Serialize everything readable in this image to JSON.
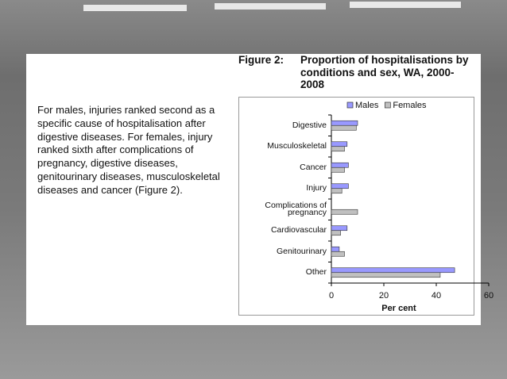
{
  "text": "For males, injuries ranked second as a specific cause of hospitalisation after digestive diseases. For females, injury ranked sixth after complications of pregnancy, digestive diseases, genitourinary diseases, musculoskeletal diseases and cancer (Figure 2).",
  "chart_data": {
    "type": "hbar",
    "figure_label": "Figure 2:",
    "title": "Proportion of hospitalisations by conditions and sex, WA, 2000-2008",
    "x_label": "Per cent",
    "categories": [
      "Digestive",
      "Musculoskeletal",
      "Cancer",
      "Injury",
      "Complications of pregnancy",
      "Cardiovascular",
      "Genitourinary",
      "Other"
    ],
    "series": [
      {
        "name": "Males",
        "color": "#9999ff",
        "values": [
          10,
          6,
          6.5,
          6.5,
          0,
          6,
          3,
          47
        ]
      },
      {
        "name": "Females",
        "color": "#c0c0c0",
        "values": [
          9.5,
          5,
          5,
          4,
          10,
          3.5,
          5,
          41.5
        ]
      }
    ],
    "xlim": [
      0,
      60
    ],
    "xticks": [
      0,
      20,
      40,
      60
    ],
    "legend": "top"
  }
}
